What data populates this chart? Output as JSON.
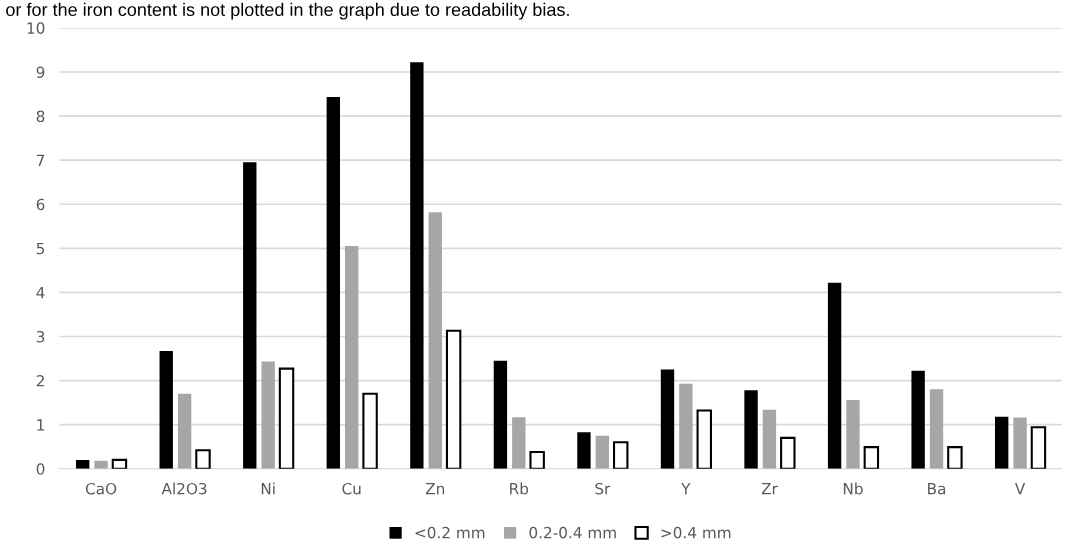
{
  "chart_data": {
    "type": "bar",
    "annotations": [
      "or for the iron content is not plotted in the graph due to readability bias."
    ],
    "categories": [
      "CaO",
      "Al2O3",
      "Ni",
      "Cu",
      "Zn",
      "Rb",
      "Sr",
      "Y",
      "Zr",
      "Nb",
      "Ba",
      "V"
    ],
    "series": [
      {
        "name": "<0.2 mm",
        "color": "#000000",
        "values": [
          0.2,
          2.67,
          6.95,
          8.43,
          9.22,
          2.45,
          0.83,
          2.25,
          1.78,
          4.22,
          2.22,
          1.18
        ]
      },
      {
        "name": "0.2-0.4 mm",
        "color": "#a6a6a6",
        "values": [
          0.18,
          1.7,
          2.43,
          5.05,
          5.82,
          1.17,
          0.75,
          1.93,
          1.34,
          1.56,
          1.8,
          1.16
        ]
      },
      {
        "name": ">0.4 mm",
        "color": "#ffffff",
        "values": [
          0.2,
          0.42,
          2.27,
          1.7,
          3.13,
          0.38,
          0.6,
          1.32,
          0.7,
          0.49,
          0.49,
          0.94
        ]
      }
    ],
    "ylim": [
      0,
      10
    ],
    "yticks": [
      0,
      1,
      2,
      3,
      4,
      5,
      6,
      7,
      8,
      9,
      10
    ],
    "grid": "y",
    "legend": "bottom"
  }
}
